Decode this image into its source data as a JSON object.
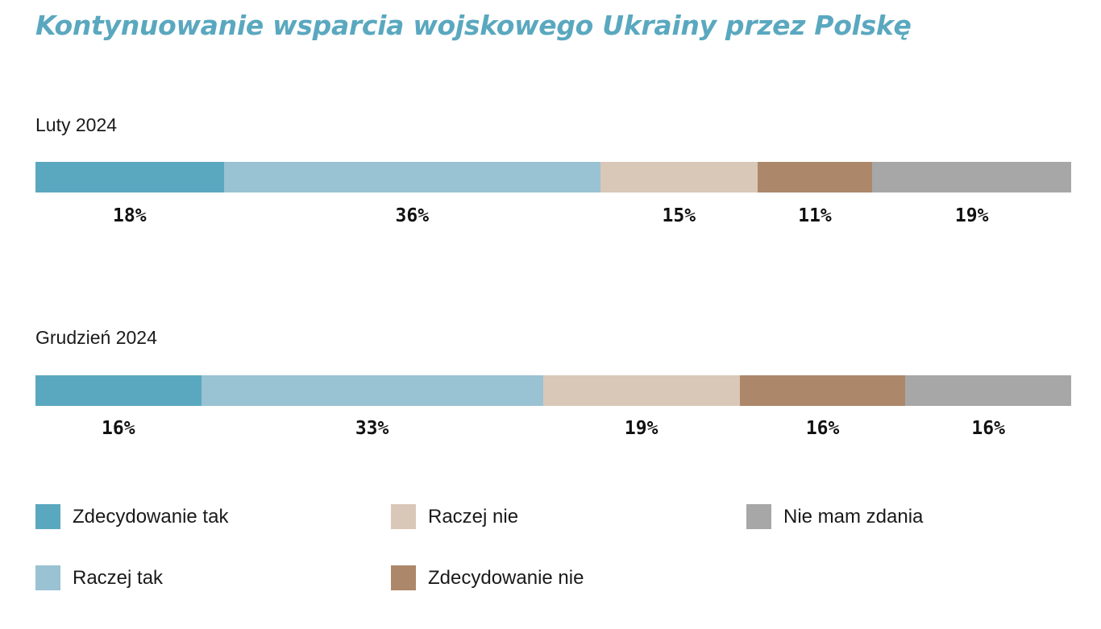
{
  "chart_data": {
    "type": "bar",
    "orientation": "horizontal-stacked",
    "title": "Kontynuowanie wsparcia wojskowego Ukrainy przez Polskę",
    "groups": [
      {
        "label": "Luty 2024",
        "values": [
          18,
          36,
          15,
          11,
          19
        ],
        "value_labels": [
          "18%",
          "36%",
          "15%",
          "11%",
          "19%"
        ]
      },
      {
        "label": "Grudzień 2024",
        "values": [
          16,
          33,
          19,
          16,
          16
        ],
        "value_labels": [
          "16%",
          "33%",
          "19%",
          "16%",
          "16%"
        ]
      }
    ],
    "series": [
      {
        "name": "Zdecydowanie tak",
        "color": "#5aa8bf"
      },
      {
        "name": "Raczej tak",
        "color": "#99c2d3"
      },
      {
        "name": "Raczej nie",
        "color": "#d9c8b8"
      },
      {
        "name": "Zdecydowanie nie",
        "color": "#ad876a"
      },
      {
        "name": "Nie mam zdania",
        "color": "#a7a7a7"
      }
    ],
    "legend_position": "bottom",
    "unit": "%"
  }
}
